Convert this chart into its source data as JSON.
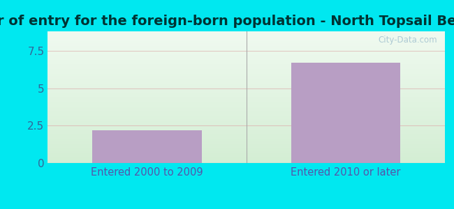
{
  "title": "Year of entry for the foreign-born population - North Topsail Beach",
  "categories": [
    "Entered 2000 to 2009",
    "Entered 2010 or later"
  ],
  "values": [
    2.2,
    6.7
  ],
  "bar_color": "#b89ec4",
  "background_outer": "#00e8f0",
  "background_inner": "#e8f5e0",
  "xlabel_color": "#5555aa",
  "ytick_color": "#336699",
  "ylabel_ticks": [
    0,
    2.5,
    5,
    7.5
  ],
  "ylim": [
    0,
    8.8
  ],
  "title_fontsize": 14,
  "tick_label_fontsize": 11,
  "xlabel_fontsize": 10.5,
  "watermark": "City-Data.com"
}
